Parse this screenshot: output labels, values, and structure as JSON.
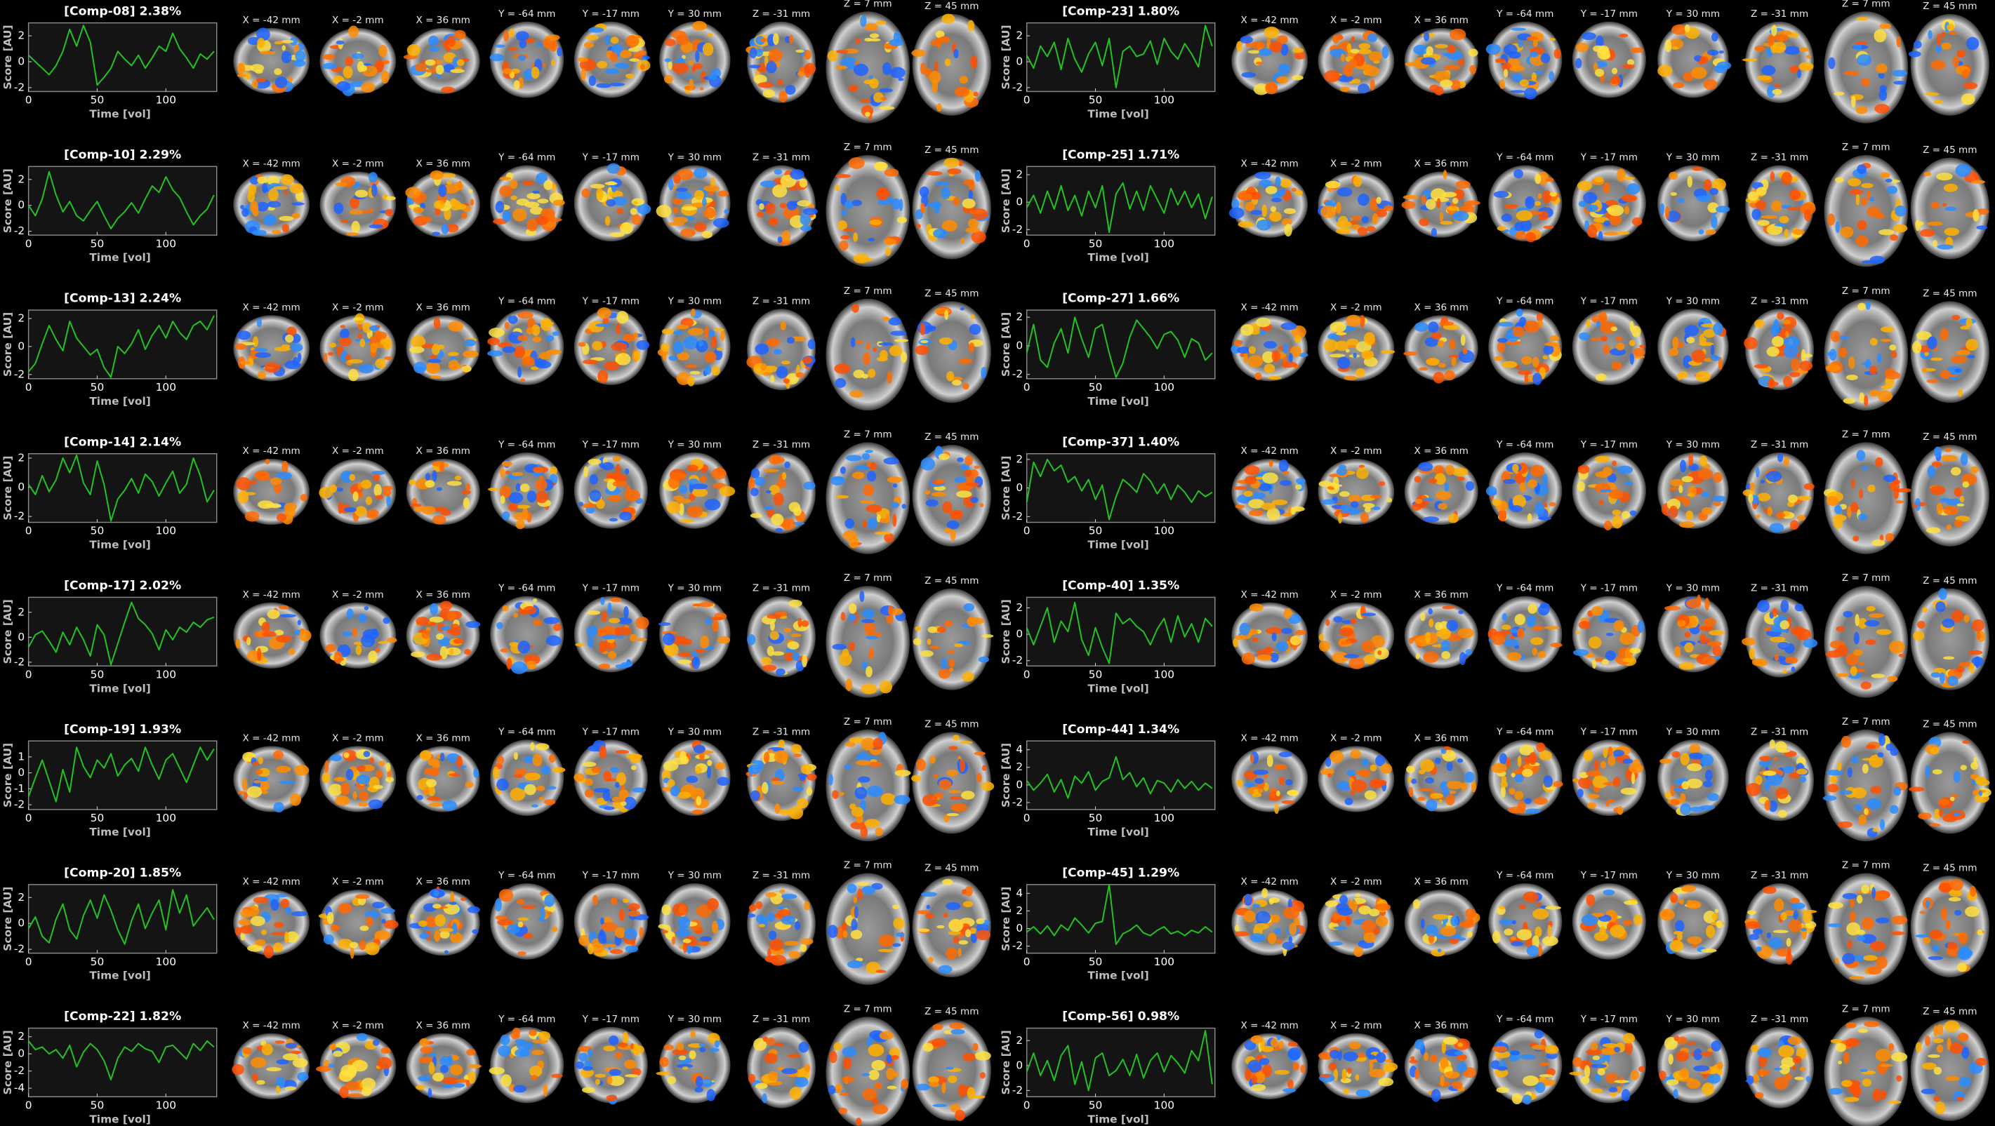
{
  "chart_data": [
    {
      "type": "line",
      "title": "[Comp-08] 2.38%",
      "x_label": "Time [vol]",
      "y_label": "Score [AU]",
      "color": "#22c322",
      "xlim": [
        0,
        137
      ],
      "ylim": [
        -2.3,
        3
      ],
      "xticks": [
        0,
        50,
        100
      ],
      "yticks": [
        -2,
        0,
        2
      ],
      "x": [
        0,
        5,
        10,
        15,
        20,
        25,
        30,
        35,
        40,
        45,
        50,
        55,
        60,
        65,
        70,
        75,
        80,
        85,
        90,
        95,
        100,
        105,
        110,
        115,
        120,
        125,
        130,
        135
      ],
      "values": [
        0.5,
        0,
        -0.5,
        -1,
        -0.3,
        0.8,
        2.5,
        1.2,
        2.8,
        1.5,
        -1.8,
        -1.2,
        -0.5,
        0.8,
        0.2,
        -0.3,
        0.5,
        -0.5,
        0.3,
        1.2,
        0.8,
        2.2,
        1.0,
        0.3,
        -0.5,
        0.6,
        0.2,
        0.8
      ]
    },
    {
      "type": "line",
      "title": "[Comp-10] 2.29%",
      "x_label": "Time [vol]",
      "y_label": "Score [AU]",
      "color": "#22c322",
      "xlim": [
        0,
        137
      ],
      "ylim": [
        -2.3,
        3
      ],
      "xticks": [
        0,
        50,
        100
      ],
      "yticks": [
        -2,
        0,
        2
      ],
      "x": [
        0,
        5,
        10,
        15,
        20,
        25,
        30,
        35,
        40,
        45,
        50,
        55,
        60,
        65,
        70,
        75,
        80,
        85,
        90,
        95,
        100,
        105,
        110,
        115,
        120,
        125,
        130,
        135
      ],
      "values": [
        0,
        -0.8,
        0.5,
        2.6,
        0.8,
        -0.5,
        0.3,
        -0.8,
        -1.2,
        -0.4,
        0.3,
        -0.8,
        -1.8,
        -1,
        -0.5,
        0.2,
        -0.6,
        0.5,
        1.5,
        1.0,
        2.2,
        1.2,
        0.6,
        -0.5,
        -1.5,
        -0.8,
        -0.3,
        0.8
      ]
    },
    {
      "type": "line",
      "title": "[Comp-13] 2.24%",
      "x_label": "Time [vol]",
      "y_label": "Score [AU]",
      "color": "#22c322",
      "xlim": [
        0,
        137
      ],
      "ylim": [
        -2.3,
        2.6
      ],
      "xticks": [
        0,
        50,
        100
      ],
      "yticks": [
        -2,
        0,
        2
      ],
      "x": [
        0,
        5,
        10,
        15,
        20,
        25,
        30,
        35,
        40,
        45,
        50,
        55,
        60,
        65,
        70,
        75,
        80,
        85,
        90,
        95,
        100,
        105,
        110,
        115,
        120,
        125,
        130,
        135
      ],
      "values": [
        -1.8,
        -1.2,
        0.2,
        1.5,
        0.5,
        -0.3,
        1.8,
        0.6,
        0,
        -0.6,
        -0.2,
        -1.5,
        -2.2,
        0,
        -0.5,
        0.2,
        1.2,
        -0.2,
        0.8,
        1.5,
        0.6,
        1.8,
        1.0,
        0.5,
        1.5,
        1.8,
        1.2,
        2.2
      ]
    },
    {
      "type": "line",
      "title": "[Comp-14] 2.14%",
      "x_label": "Time [vol]",
      "y_label": "Score [AU]",
      "color": "#22c322",
      "xlim": [
        0,
        137
      ],
      "ylim": [
        -2.4,
        2.3
      ],
      "xticks": [
        0,
        50,
        100
      ],
      "yticks": [
        -2,
        0,
        2
      ],
      "x": [
        0,
        5,
        10,
        15,
        20,
        25,
        30,
        35,
        40,
        45,
        50,
        55,
        60,
        65,
        70,
        75,
        80,
        85,
        90,
        95,
        100,
        105,
        110,
        115,
        120,
        125,
        130,
        135
      ],
      "values": [
        0.2,
        -0.5,
        0.8,
        -0.3,
        0.5,
        2.0,
        1.0,
        2.2,
        0.3,
        -0.5,
        1.8,
        0.2,
        -2.3,
        -0.8,
        -0.2,
        0.6,
        -0.4,
        0.9,
        0.4,
        -0.6,
        0.3,
        1.1,
        -0.4,
        0.2,
        2.0,
        0.8,
        -1.0,
        -0.2
      ]
    },
    {
      "type": "line",
      "title": "[Comp-17] 2.02%",
      "x_label": "Time [vol]",
      "y_label": "Score [AU]",
      "color": "#22c322",
      "xlim": [
        0,
        137
      ],
      "ylim": [
        -2.3,
        3.2
      ],
      "xticks": [
        0,
        50,
        100
      ],
      "yticks": [
        -2,
        0,
        2
      ],
      "x": [
        0,
        5,
        10,
        15,
        20,
        25,
        30,
        35,
        40,
        45,
        50,
        55,
        60,
        65,
        70,
        75,
        80,
        85,
        90,
        95,
        100,
        105,
        110,
        115,
        120,
        125,
        130,
        135
      ],
      "values": [
        -0.8,
        0.2,
        0.5,
        -0.3,
        -1.2,
        0.4,
        -0.6,
        0.8,
        -0.2,
        -1.5,
        1.0,
        0.2,
        -2.2,
        -0.5,
        1.2,
        2.8,
        1.5,
        1.0,
        0.3,
        -1.0,
        0.6,
        -0.2,
        0.8,
        0.4,
        1.2,
        0.8,
        1.4,
        1.6
      ]
    },
    {
      "type": "line",
      "title": "[Comp-19] 1.93%",
      "x_label": "Time [vol]",
      "y_label": "Score [AU]",
      "color": "#22c322",
      "xlim": [
        0,
        137
      ],
      "ylim": [
        -2.3,
        2
      ],
      "xticks": [
        0,
        50,
        100
      ],
      "yticks": [
        -2,
        -1,
        0,
        1
      ],
      "x": [
        0,
        5,
        10,
        15,
        20,
        25,
        30,
        35,
        40,
        45,
        50,
        55,
        60,
        65,
        70,
        75,
        80,
        85,
        90,
        95,
        100,
        105,
        110,
        115,
        120,
        125,
        130,
        135
      ],
      "values": [
        -1.5,
        -0.3,
        0.8,
        -0.5,
        -1.8,
        0.2,
        -1.2,
        1.6,
        0.4,
        -0.3,
        0.8,
        0.3,
        1.2,
        -0.2,
        0.5,
        0.9,
        0.1,
        1.6,
        0.5,
        -0.4,
        0.8,
        1.2,
        0.3,
        -0.6,
        0.5,
        1.6,
        0.8,
        1.5
      ]
    },
    {
      "type": "line",
      "title": "[Comp-20] 1.85%",
      "x_label": "Time [vol]",
      "y_label": "Score [AU]",
      "color": "#22c322",
      "xlim": [
        0,
        137
      ],
      "ylim": [
        -2.3,
        3
      ],
      "xticks": [
        0,
        50,
        100
      ],
      "yticks": [
        -2,
        0,
        2
      ],
      "x": [
        0,
        5,
        10,
        15,
        20,
        25,
        30,
        35,
        40,
        45,
        50,
        55,
        60,
        65,
        70,
        75,
        80,
        85,
        90,
        95,
        100,
        105,
        110,
        115,
        120,
        125,
        130,
        135
      ],
      "values": [
        -0.4,
        0.5,
        -1,
        -1.5,
        0.3,
        1.5,
        -0.5,
        -1.2,
        0.6,
        1.8,
        0.4,
        2.2,
        1.0,
        -0.5,
        -1.6,
        0.2,
        1.5,
        -0.4,
        0.8,
        1.8,
        -0.5,
        2.6,
        0.8,
        2.2,
        -0.2,
        0.5,
        1.2,
        0.3
      ]
    },
    {
      "type": "line",
      "title": "[Comp-22] 1.82%",
      "x_label": "Time [vol]",
      "y_label": "Score [AU]",
      "color": "#22c322",
      "xlim": [
        0,
        137
      ],
      "ylim": [
        -5,
        3
      ],
      "xticks": [
        0,
        50,
        100
      ],
      "yticks": [
        -4,
        -2,
        0,
        2
      ],
      "x": [
        0,
        5,
        10,
        15,
        20,
        25,
        30,
        35,
        40,
        45,
        50,
        55,
        60,
        65,
        70,
        75,
        80,
        85,
        90,
        95,
        100,
        105,
        110,
        115,
        120,
        125,
        130,
        135
      ],
      "values": [
        1.5,
        0.5,
        0.8,
        0,
        0.5,
        -0.5,
        1.0,
        -1.5,
        0.2,
        1.2,
        0.5,
        -0.8,
        -3.0,
        -0.5,
        0.8,
        0.3,
        1.2,
        0.6,
        0.3,
        -1.0,
        0.8,
        1.0,
        0.2,
        -0.6,
        1.2,
        0.4,
        1.5,
        0.8
      ]
    },
    {
      "type": "line",
      "title": "[Comp-23] 1.80%",
      "x_label": "Time [vol]",
      "y_label": "Score [AU]",
      "color": "#22c322",
      "xlim": [
        0,
        137
      ],
      "ylim": [
        -2.3,
        3
      ],
      "xticks": [
        0,
        50,
        100
      ],
      "yticks": [
        -2,
        0,
        2
      ],
      "x": [
        0,
        5,
        10,
        15,
        20,
        25,
        30,
        35,
        40,
        45,
        50,
        55,
        60,
        65,
        70,
        75,
        80,
        85,
        90,
        95,
        100,
        105,
        110,
        115,
        120,
        125,
        130,
        135
      ],
      "values": [
        0.5,
        -0.5,
        1.2,
        0.4,
        1.5,
        -0.6,
        1.8,
        0.2,
        -0.8,
        0.6,
        1.5,
        -0.3,
        1.8,
        -2.0,
        0.8,
        1.2,
        0.4,
        0.6,
        1.6,
        -0.2,
        1.8,
        0.8,
        0.2,
        1.4,
        0.6,
        -0.4,
        2.8,
        1.2
      ]
    },
    {
      "type": "line",
      "title": "[Comp-25] 1.71%",
      "x_label": "Time [vol]",
      "y_label": "Score [AU]",
      "color": "#22c322",
      "xlim": [
        0,
        137
      ],
      "ylim": [
        -2.4,
        2.6
      ],
      "xticks": [
        0,
        50,
        100
      ],
      "yticks": [
        -2,
        0,
        2
      ],
      "x": [
        0,
        5,
        10,
        15,
        20,
        25,
        30,
        35,
        40,
        45,
        50,
        55,
        60,
        65,
        70,
        75,
        80,
        85,
        90,
        95,
        100,
        105,
        110,
        115,
        120,
        125,
        130,
        135
      ],
      "values": [
        -0.4,
        0.5,
        -0.8,
        0.8,
        -0.5,
        1.2,
        -0.6,
        0.5,
        -1.0,
        0.8,
        -0.4,
        1.2,
        -2.2,
        0.6,
        1.4,
        -0.5,
        0.8,
        -0.6,
        1.2,
        0.2,
        -0.8,
        1.0,
        -0.2,
        0.8,
        -0.4,
        0.6,
        -1.2,
        0.4
      ]
    },
    {
      "type": "line",
      "title": "[Comp-27] 1.66%",
      "x_label": "Time [vol]",
      "y_label": "Score [AU]",
      "color": "#22c322",
      "xlim": [
        0,
        137
      ],
      "ylim": [
        -2.3,
        2.5
      ],
      "xticks": [
        0,
        50,
        100
      ],
      "yticks": [
        -2,
        0,
        2
      ],
      "x": [
        0,
        5,
        10,
        15,
        20,
        25,
        30,
        35,
        40,
        45,
        50,
        55,
        60,
        65,
        70,
        75,
        80,
        85,
        90,
        95,
        100,
        105,
        110,
        115,
        120,
        125,
        130,
        135
      ],
      "values": [
        -0.5,
        1.5,
        -1.0,
        -1.5,
        0.2,
        1.2,
        -0.5,
        2.0,
        0.5,
        -0.8,
        1.2,
        1.5,
        -0.5,
        -2.2,
        -1.2,
        0.6,
        1.8,
        1.2,
        0.6,
        -0.2,
        0.8,
        1.0,
        0.4,
        -0.8,
        0.5,
        0.2,
        -1.0,
        -0.5
      ]
    },
    {
      "type": "line",
      "title": "[Comp-37] 1.40%",
      "x_label": "Time [vol]",
      "y_label": "Score [AU]",
      "color": "#22c322",
      "xlim": [
        0,
        137
      ],
      "ylim": [
        -2.4,
        2.4
      ],
      "xticks": [
        0,
        50,
        100
      ],
      "yticks": [
        -2,
        0,
        2
      ],
      "x": [
        0,
        5,
        10,
        15,
        20,
        25,
        30,
        35,
        40,
        45,
        50,
        55,
        60,
        65,
        70,
        75,
        80,
        85,
        90,
        95,
        100,
        105,
        110,
        115,
        120,
        125,
        130,
        135
      ],
      "values": [
        -1,
        1.8,
        0.8,
        2.0,
        1.2,
        1.6,
        0.4,
        0.8,
        -0.2,
        0.6,
        -0.8,
        0.2,
        -2.2,
        -0.6,
        0.6,
        0.2,
        -0.3,
        1.0,
        0.5,
        -0.4,
        0.3,
        -0.8,
        0.2,
        -0.3,
        -1.0,
        -0.2,
        -0.6,
        -0.3
      ]
    },
    {
      "type": "line",
      "title": "[Comp-40] 1.35%",
      "x_label": "Time [vol]",
      "y_label": "Score [AU]",
      "color": "#22c322",
      "xlim": [
        0,
        137
      ],
      "ylim": [
        -2.4,
        2.8
      ],
      "xticks": [
        0,
        50,
        100
      ],
      "yticks": [
        -2,
        0,
        2
      ],
      "x": [
        0,
        5,
        10,
        15,
        20,
        25,
        30,
        35,
        40,
        45,
        50,
        55,
        60,
        65,
        70,
        75,
        80,
        85,
        90,
        95,
        100,
        105,
        110,
        115,
        120,
        125,
        130,
        135
      ],
      "values": [
        0.5,
        -0.8,
        0.6,
        2.0,
        -0.6,
        1.0,
        0.2,
        2.4,
        -0.4,
        -1.6,
        0.5,
        -1.0,
        -2.2,
        1.6,
        0.8,
        1.2,
        0.6,
        0.2,
        -0.8,
        0.4,
        1.2,
        -0.6,
        1.4,
        -0.2,
        0.8,
        -0.6,
        1.2,
        0.6
      ]
    },
    {
      "type": "line",
      "title": "[Comp-44] 1.34%",
      "x_label": "Time [vol]",
      "y_label": "Score [AU]",
      "color": "#22c322",
      "xlim": [
        0,
        137
      ],
      "ylim": [
        -2.8,
        5
      ],
      "xticks": [
        0,
        50,
        100
      ],
      "yticks": [
        -2,
        0,
        2,
        4
      ],
      "x": [
        0,
        5,
        10,
        15,
        20,
        25,
        30,
        35,
        40,
        45,
        50,
        55,
        60,
        65,
        70,
        75,
        80,
        85,
        90,
        95,
        100,
        105,
        110,
        115,
        120,
        125,
        130,
        135
      ],
      "values": [
        0.5,
        -0.6,
        0.2,
        1.2,
        -0.8,
        0.6,
        -1.5,
        1.0,
        0.2,
        1.5,
        -0.6,
        0.4,
        0.8,
        3.2,
        0.6,
        1.4,
        -0.2,
        0.8,
        -1.0,
        0.5,
        0.2,
        -0.8,
        0.6,
        -0.4,
        0.4,
        -0.6,
        0.2,
        -0.4
      ]
    },
    {
      "type": "line",
      "title": "[Comp-45] 1.29%",
      "x_label": "Time [vol]",
      "y_label": "Score [AU]",
      "color": "#22c322",
      "xlim": [
        0,
        137
      ],
      "ylim": [
        -2.8,
        5
      ],
      "xticks": [
        0,
        50,
        100
      ],
      "yticks": [
        -2,
        0,
        2,
        4
      ],
      "x": [
        0,
        5,
        10,
        15,
        20,
        25,
        30,
        35,
        40,
        45,
        50,
        55,
        60,
        65,
        70,
        75,
        80,
        85,
        90,
        95,
        100,
        105,
        110,
        115,
        120,
        125,
        130,
        135
      ],
      "values": [
        -0.4,
        0.2,
        -0.6,
        0.3,
        -0.8,
        0.4,
        -0.2,
        1.2,
        0.4,
        -0.5,
        0.6,
        0.8,
        5.0,
        -1.8,
        -0.6,
        -0.2,
        0.4,
        -0.5,
        -0.8,
        -0.2,
        0.2,
        -0.6,
        -0.3,
        -0.8,
        -0.2,
        -0.5,
        0.2,
        -0.4
      ]
    },
    {
      "type": "line",
      "title": "[Comp-56] 0.98%",
      "x_label": "Time [vol]",
      "y_label": "Score [AU]",
      "color": "#22c322",
      "xlim": [
        0,
        137
      ],
      "ylim": [
        -2.5,
        3
      ],
      "xticks": [
        0,
        50,
        100
      ],
      "yticks": [
        -2,
        0,
        2
      ],
      "x": [
        0,
        5,
        10,
        15,
        20,
        25,
        30,
        35,
        40,
        45,
        50,
        55,
        60,
        65,
        70,
        75,
        80,
        85,
        90,
        95,
        100,
        105,
        110,
        115,
        120,
        125,
        130,
        135
      ],
      "values": [
        -0.5,
        1.0,
        -0.8,
        0.4,
        -1.2,
        0.8,
        1.6,
        -1.5,
        0.3,
        -2.0,
        0.6,
        1.0,
        -0.8,
        -0.4,
        0.5,
        -0.8,
        0.9,
        -1.0,
        0.4,
        1.0,
        -0.5,
        0.8,
        0.2,
        -0.6,
        1.2,
        0.4,
        2.8,
        -1.5
      ]
    }
  ],
  "slice_labels": [
    "X = -42 mm",
    "X = -2 mm",
    "X = 36 mm",
    "Y = -64 mm",
    "Y = -17 mm",
    "Y = 30 mm",
    "Z = -31 mm",
    "Z = 7 mm",
    "Z = 45 mm"
  ]
}
